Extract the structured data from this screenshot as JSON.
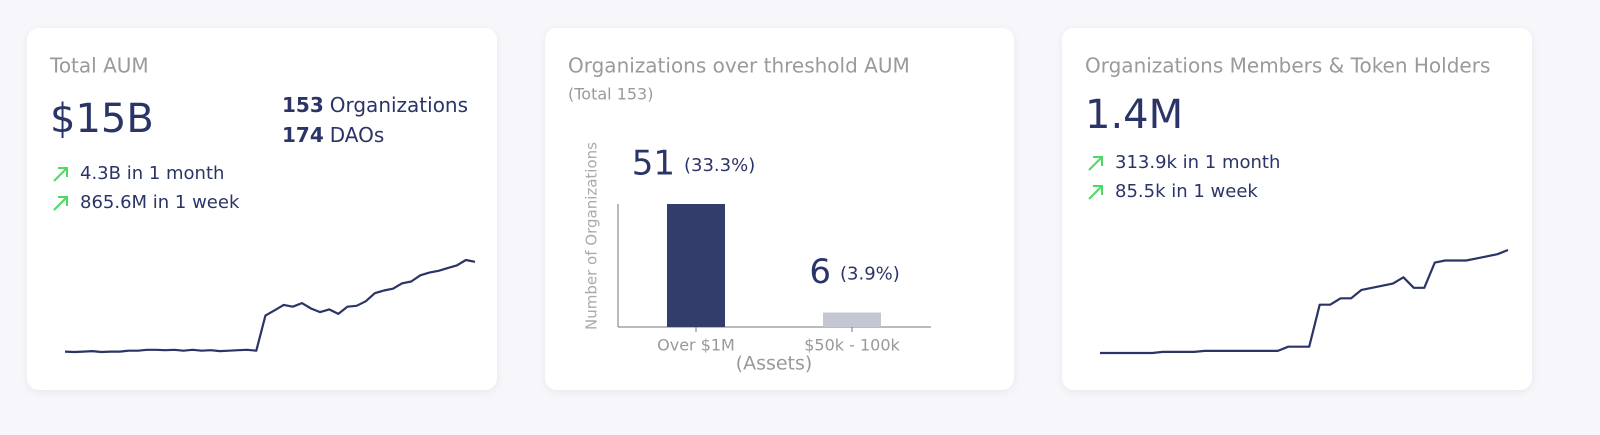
{
  "cards": [
    {
      "title": "Total AUM",
      "value": "$15B",
      "counts": [
        {
          "number": "153",
          "label": "Organizations"
        },
        {
          "number": "174",
          "label": "DAOs"
        }
      ],
      "changes": [
        "4.3B in 1 month",
        "865.6M in 1 week"
      ],
      "sparkline": {
        "type": "line",
        "color": "#2b3467",
        "values": [
          5.0,
          4.95,
          5.0,
          5.05,
          4.95,
          5.0,
          5.0,
          5.1,
          5.1,
          5.2,
          5.2,
          5.15,
          5.2,
          5.1,
          5.2,
          5.1,
          5.15,
          5.05,
          5.1,
          5.15,
          5.2,
          5.1,
          9.0,
          9.6,
          10.2,
          10.0,
          10.4,
          9.8,
          9.4,
          9.7,
          9.2,
          10.0,
          10.1,
          10.6,
          11.5,
          11.8,
          12.0,
          12.6,
          12.8,
          13.5,
          13.8,
          14.0,
          14.3,
          14.6,
          15.2,
          15.0
        ]
      }
    },
    {
      "title": "Organizations over threshold AUM",
      "subtitle": "(Total 153)",
      "chart": {
        "type": "bar",
        "y_label": "Number of Organizations",
        "x_label": "(Assets)",
        "categories": [
          "Over $1M",
          "$50k - 100k"
        ],
        "values": [
          51,
          6
        ],
        "percents": [
          33.3,
          3.9
        ],
        "percent_labels": [
          "(33.3%)",
          "(3.9%)"
        ],
        "colors": [
          "#323d6b",
          "#c3c6d3"
        ],
        "ylim": [
          0,
          51
        ]
      }
    },
    {
      "title": "Organizations Members & Token Holders",
      "value": "1.4M",
      "changes": [
        "313.9k in 1 month",
        "85.5k in 1 week"
      ],
      "sparkline": {
        "type": "line",
        "color": "#2b3467",
        "values": [
          0.93,
          0.93,
          0.93,
          0.93,
          0.93,
          0.93,
          0.935,
          0.935,
          0.935,
          0.935,
          0.94,
          0.94,
          0.94,
          0.94,
          0.94,
          0.94,
          0.94,
          0.94,
          0.96,
          0.96,
          0.96,
          1.16,
          1.16,
          1.19,
          1.19,
          1.23,
          1.24,
          1.25,
          1.26,
          1.29,
          1.24,
          1.24,
          1.36,
          1.37,
          1.37,
          1.37,
          1.38,
          1.39,
          1.4,
          1.42
        ]
      }
    }
  ]
}
